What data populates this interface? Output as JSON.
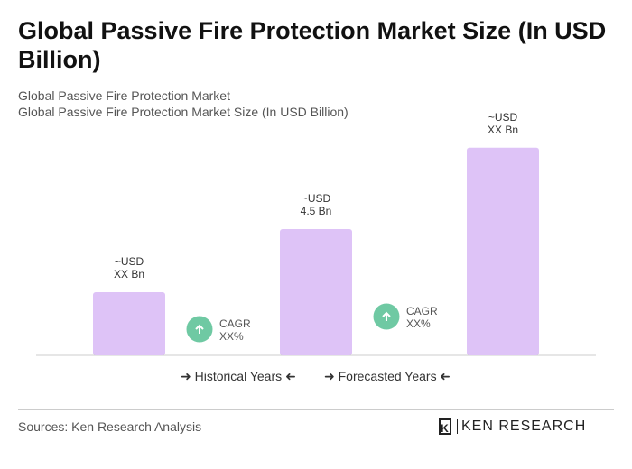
{
  "title": "Global Passive Fire Protection Market Size (In USD Billion)",
  "subtitle1": "Global Passive Fire Protection Market",
  "subtitle2": "Global Passive Fire Protection Market Size (In USD Billion)",
  "chart_data": {
    "type": "bar",
    "categories": [
      "",
      "",
      ""
    ],
    "values": [
      2.25,
      4.5,
      7.4
    ],
    "data_labels": [
      [
        "~USD",
        "XX Bn"
      ],
      [
        "~USD",
        "4.5 Bn"
      ],
      [
        "~USD",
        "XX Bn"
      ]
    ],
    "bar_color": "#dec3f7",
    "cagr": [
      {
        "label": "CAGR",
        "value": "XX%"
      },
      {
        "label": "CAGR",
        "value": "XX%"
      }
    ],
    "cagr_color": "#6fc9a3",
    "grid": false
  },
  "legend": {
    "historical": "Historical Years",
    "forecasted": "Forecasted Years"
  },
  "sources": "Sources: Ken Research Analysis",
  "logo": "KEN RESEARCH"
}
